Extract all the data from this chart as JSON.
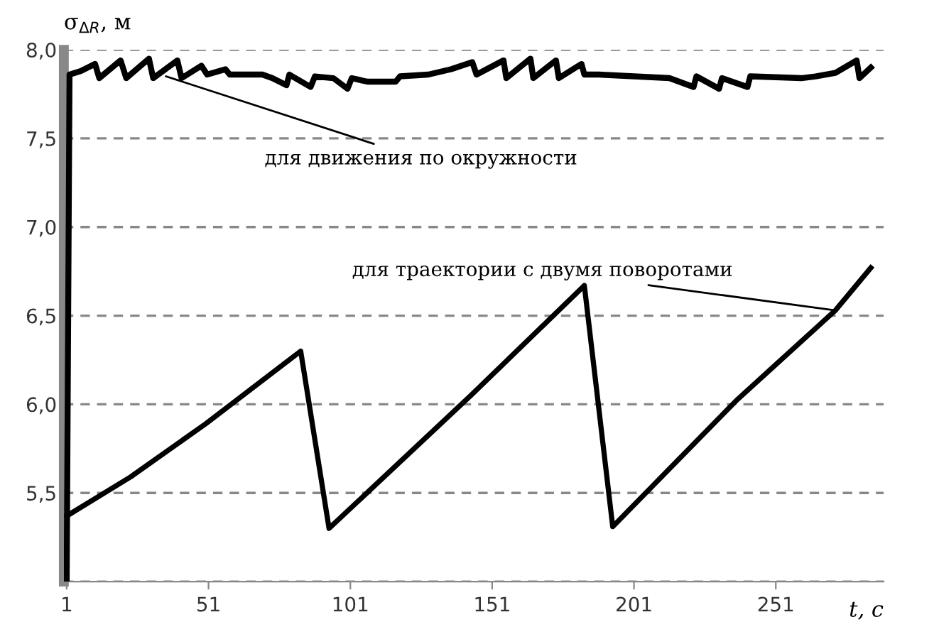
{
  "chart_data": {
    "type": "line",
    "ylabel": "σ$_{ΔR}$, м",
    "xlabel": "t, с",
    "xlim": [
      0,
      289
    ],
    "xticks": [
      1,
      51,
      101,
      151,
      201,
      251
    ],
    "ylim": [
      5.0,
      8.0
    ],
    "yticks": [
      {
        "value": 5.0,
        "label": null
      },
      {
        "value": 5.5,
        "label": "5,5"
      },
      {
        "value": 6.0,
        "label": "6,0"
      },
      {
        "value": 6.5,
        "label": "6,5"
      },
      {
        "value": 7.0,
        "label": "7,0"
      },
      {
        "value": 7.5,
        "label": "7,5"
      },
      {
        "value": 8.0,
        "label": "8,0"
      }
    ],
    "grid": "y",
    "line_style": "solid",
    "marker": "none",
    "series": [
      {
        "color": "#000000",
        "x": [
          1,
          2,
          6,
          11,
          12.5,
          20,
          22,
          30,
          31.5,
          40,
          41.5,
          48.5,
          50.5,
          57,
          58.5,
          70,
          73.5,
          78.5,
          79.5,
          87,
          88.5,
          95,
          100,
          101.5,
          107,
          117,
          118.5,
          128.5,
          136.5,
          144,
          145.5,
          155,
          156,
          164.5,
          165.5,
          173.5,
          174.5,
          182.5,
          183.5,
          188.5,
          201,
          213.5,
          222,
          223,
          231,
          232,
          241,
          242,
          260,
          265,
          272,
          279.5,
          280.5,
          284.5
        ],
        "values": [
          5.0,
          7.86,
          7.88,
          7.92,
          7.84,
          7.94,
          7.84,
          7.95,
          7.84,
          7.94,
          7.84,
          7.91,
          7.86,
          7.89,
          7.86,
          7.86,
          7.84,
          7.8,
          7.86,
          7.79,
          7.85,
          7.84,
          7.78,
          7.84,
          7.82,
          7.82,
          7.85,
          7.86,
          7.89,
          7.93,
          7.86,
          7.94,
          7.84,
          7.95,
          7.84,
          7.94,
          7.84,
          7.92,
          7.86,
          7.86,
          7.85,
          7.84,
          7.79,
          7.85,
          7.78,
          7.84,
          7.79,
          7.85,
          7.84,
          7.85,
          7.87,
          7.94,
          7.84,
          7.9
        ]
      },
      {
        "color": "#000000",
        "x": [
          1,
          23.5,
          50,
          83.5,
          93.5,
          143.5,
          183.5,
          193.5,
          237,
          272,
          284.5
        ],
        "values": [
          5.37,
          5.59,
          5.89,
          6.3,
          5.3,
          6.05,
          6.67,
          5.31,
          6.02,
          6.53,
          6.77
        ]
      }
    ],
    "annotations": [
      {
        "text": "для движения по окружности",
        "x": 36,
        "y": 7.85
      },
      {
        "text": "для траектории с двумя поворотами",
        "x": 272,
        "y": 6.53
      }
    ]
  }
}
